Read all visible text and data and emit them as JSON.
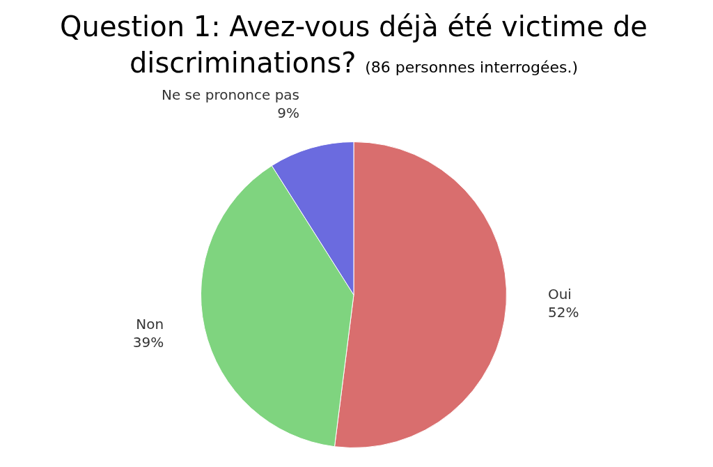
{
  "chart_data": {
    "type": "pie",
    "title": "Question 1: Avez-vous déjà été victime de discriminations?",
    "subtitle": "(86 personnes interrogées.)",
    "categories": [
      "Oui",
      "Non",
      "Ne se prononce pas"
    ],
    "values": [
      52,
      39,
      9
    ],
    "colors": [
      "#d96e6e",
      "#7fd47f",
      "#6b6bdf"
    ],
    "value_labels": [
      "52%",
      "39%",
      "9%"
    ],
    "legend": false
  }
}
